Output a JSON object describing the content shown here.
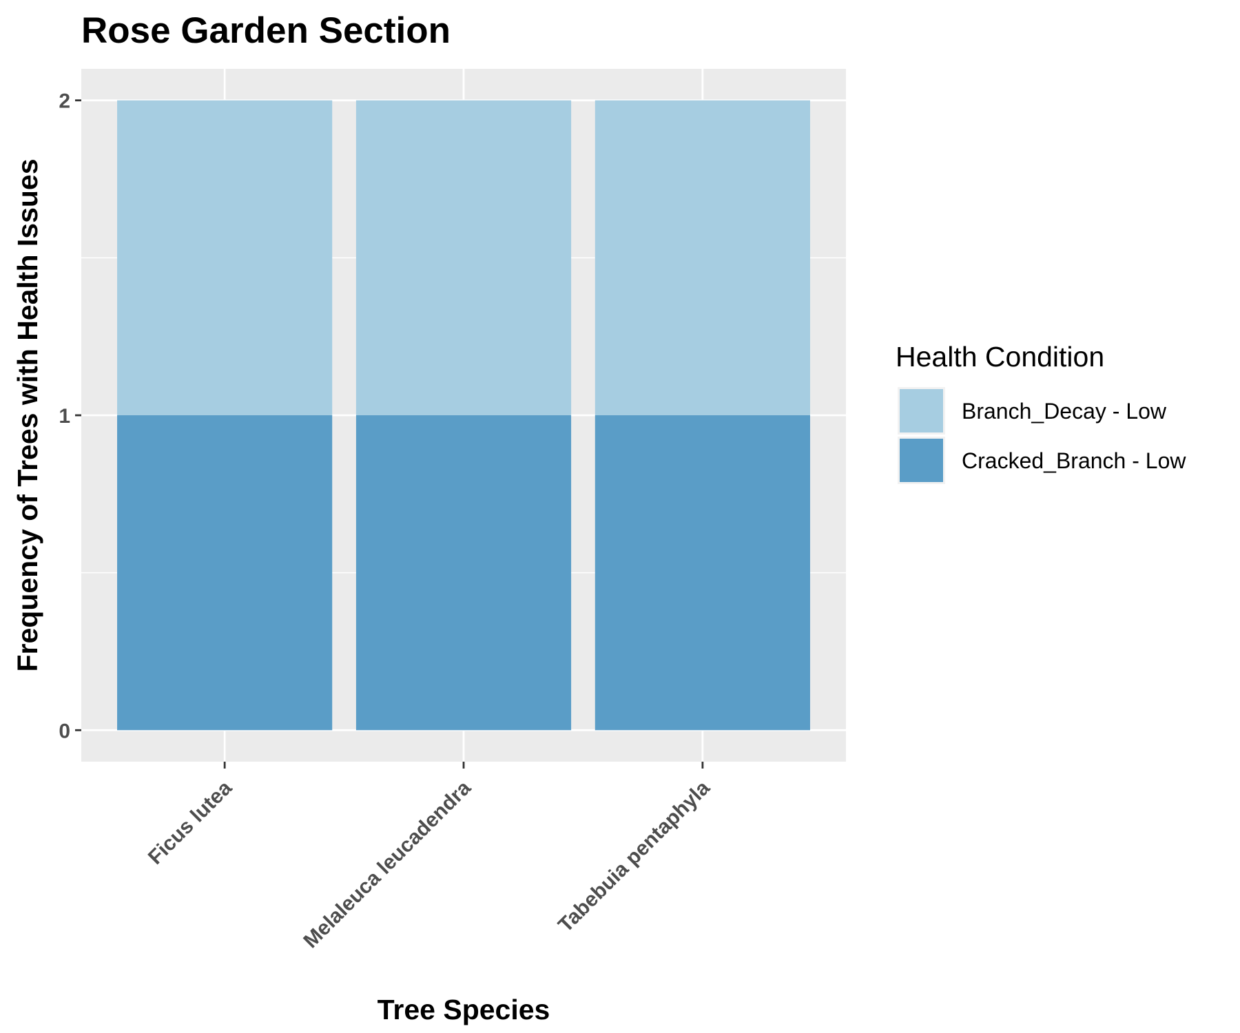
{
  "chart_data": {
    "type": "bar",
    "stacked": true,
    "title": "Rose Garden Section",
    "xlabel": "Tree Species",
    "ylabel": "Frequency of Trees with Health Issues",
    "categories": [
      "Ficus lutea",
      "Melaleuca leucadendra",
      "Tabebuia pentaphyla"
    ],
    "series": [
      {
        "name": "Cracked_Branch - Low",
        "values": [
          1,
          1,
          1
        ],
        "color": "#5a9dc7"
      },
      {
        "name": "Branch_Decay - Low",
        "values": [
          1,
          1,
          1
        ],
        "color": "#a6cde1"
      }
    ],
    "ylim": [
      -0.1,
      2.1
    ],
    "yticks": [
      0,
      1,
      2
    ],
    "grid": true,
    "panel_background": "#ebebeb",
    "legend": {
      "title": "Health Condition",
      "position": "right",
      "items": [
        "Branch_Decay - Low",
        "Cracked_Branch - Low"
      ]
    }
  }
}
